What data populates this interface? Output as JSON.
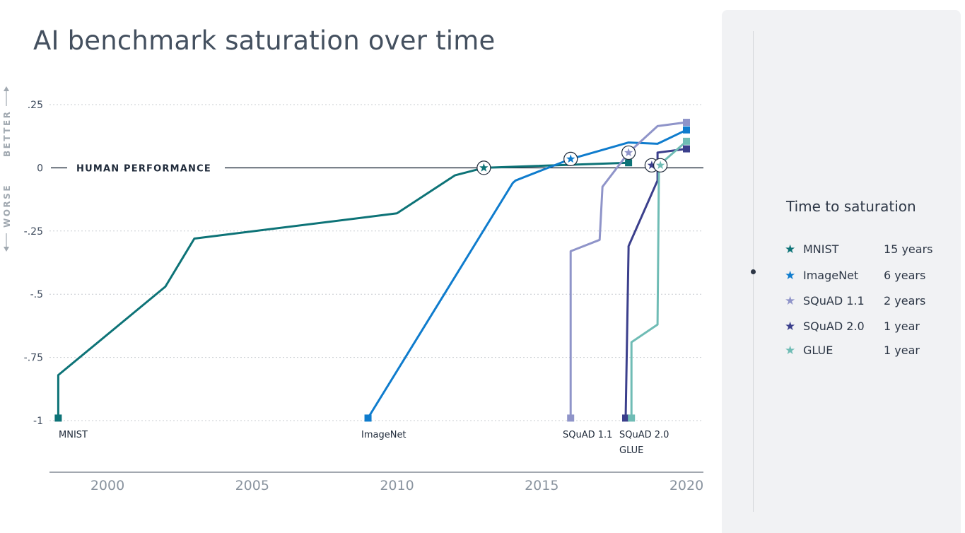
{
  "title": "AI benchmark saturation over time",
  "chart_data": {
    "type": "line",
    "title": "AI benchmark saturation over time",
    "xlim": [
      1997,
      2020.7
    ],
    "ylim": [
      -1.2,
      0.32
    ],
    "xticks": [
      2000,
      2005,
      2010,
      2015,
      2020
    ],
    "yticks": [
      {
        "value": 0.25,
        "label": ".25"
      },
      {
        "value": 0,
        "label": "0"
      },
      {
        "value": -0.25,
        "label": "-.25"
      },
      {
        "value": -0.5,
        "label": "-.5"
      },
      {
        "value": -0.75,
        "label": "-.75"
      },
      {
        "value": -1,
        "label": "-1"
      }
    ],
    "grid": true,
    "better_label": "BETTER",
    "worse_label": "WORSE",
    "human_performance_label": "HUMAN PERFORMANCE",
    "series": [
      {
        "name": "MNIST",
        "color": "#0d7377",
        "x": [
          1998.3,
          1998.3,
          2002,
          2003,
          2010,
          2012,
          2013,
          2018
        ],
        "y": [
          -0.99,
          -0.82,
          -0.47,
          -0.28,
          -0.18,
          -0.03,
          0.0,
          0.02
        ],
        "saturation": {
          "x": 2013,
          "y": 0.0
        },
        "start_label": "MNIST",
        "end_marker": {
          "x": 2018,
          "y": 0.02
        }
      },
      {
        "name": "ImageNet",
        "color": "#0f7ccd",
        "x": [
          2009,
          2014,
          2014.1,
          2016,
          2018,
          2019,
          2020
        ],
        "y": [
          -0.99,
          -0.06,
          -0.05,
          0.035,
          0.1,
          0.095,
          0.15
        ],
        "saturation": {
          "x": 2016,
          "y": 0.035
        },
        "start_label": "ImageNet",
        "end_marker": {
          "x": 2020,
          "y": 0.15
        }
      },
      {
        "name": "SQuAD 1.1",
        "color": "#8f94c9",
        "x": [
          2016,
          2016,
          2017,
          2017.1,
          2018,
          2019,
          2020
        ],
        "y": [
          -0.99,
          -0.33,
          -0.285,
          -0.075,
          0.06,
          0.165,
          0.18
        ],
        "saturation": {
          "x": 2018,
          "y": 0.06
        },
        "start_label": "SQuAD 1.1",
        "end_marker": {
          "x": 2020,
          "y": 0.18
        }
      },
      {
        "name": "SQuAD 2.0",
        "color": "#3b3f8c",
        "x": [
          2017.9,
          2018,
          2018,
          2019,
          2019,
          2020
        ],
        "y": [
          -0.99,
          -0.32,
          -0.31,
          -0.05,
          0.06,
          0.075
        ],
        "saturation": {
          "x": 2018.8,
          "y": 0.01
        },
        "start_label": "SQuAD 2.0",
        "end_marker": {
          "x": 2020,
          "y": 0.075
        }
      },
      {
        "name": "GLUE",
        "color": "#6fbcb5",
        "x": [
          2018.1,
          2018.1,
          2019,
          2019.05,
          2020
        ],
        "y": [
          -0.99,
          -0.69,
          -0.62,
          0.01,
          0.105
        ],
        "saturation": {
          "x": 2019.1,
          "y": 0.01
        },
        "start_label": "GLUE",
        "end_marker": {
          "x": 2020,
          "y": 0.105
        }
      }
    ]
  },
  "legend": {
    "title": "Time to saturation",
    "items": [
      {
        "name": "MNIST",
        "years": "15 years",
        "color": "#0d7377"
      },
      {
        "name": "ImageNet",
        "years": "6 years",
        "color": "#0f7ccd"
      },
      {
        "name": "SQuAD 1.1",
        "years": "2 years",
        "color": "#8f94c9"
      },
      {
        "name": "SQuAD 2.0",
        "years": "1 year",
        "color": "#3b3f8c"
      },
      {
        "name": "GLUE",
        "years": "1 year",
        "color": "#6fbcb5"
      }
    ]
  }
}
